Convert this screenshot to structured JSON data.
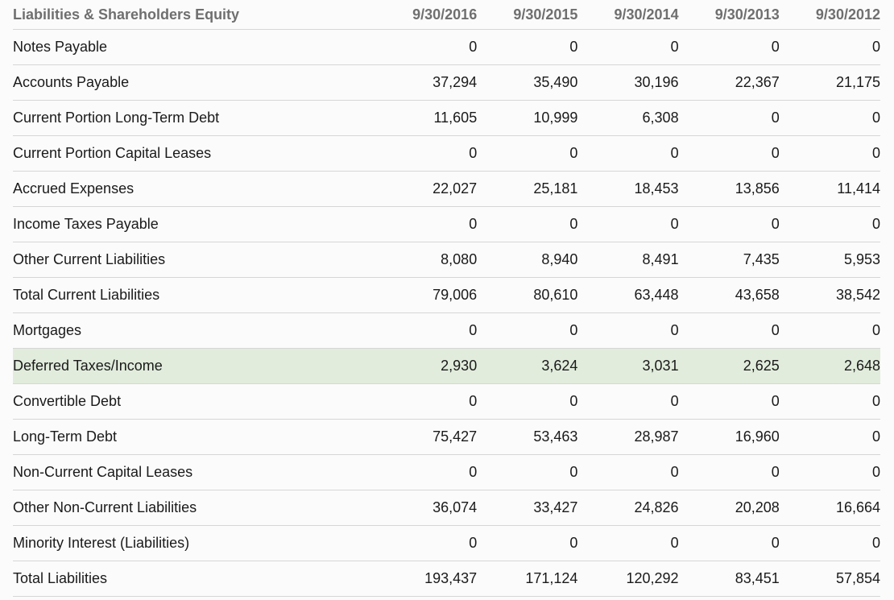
{
  "table": {
    "header_label": "Liabilities & Shareholders Equity",
    "columns": [
      "9/30/2016",
      "9/30/2015",
      "9/30/2014",
      "9/30/2013",
      "9/30/2012"
    ],
    "highlight_color": "#e1ecdc",
    "rows": [
      {
        "label": "Notes Payable",
        "values": [
          "0",
          "0",
          "0",
          "0",
          "0"
        ]
      },
      {
        "label": "Accounts Payable",
        "values": [
          "37,294",
          "35,490",
          "30,196",
          "22,367",
          "21,175"
        ]
      },
      {
        "label": "Current Portion Long-Term Debt",
        "values": [
          "11,605",
          "10,999",
          "6,308",
          "0",
          "0"
        ]
      },
      {
        "label": "Current Portion Capital Leases",
        "values": [
          "0",
          "0",
          "0",
          "0",
          "0"
        ]
      },
      {
        "label": "Accrued Expenses",
        "values": [
          "22,027",
          "25,181",
          "18,453",
          "13,856",
          "11,414"
        ]
      },
      {
        "label": "Income Taxes Payable",
        "values": [
          "0",
          "0",
          "0",
          "0",
          "0"
        ]
      },
      {
        "label": "Other Current Liabilities",
        "values": [
          "8,080",
          "8,940",
          "8,491",
          "7,435",
          "5,953"
        ]
      },
      {
        "label": "Total Current Liabilities",
        "values": [
          "79,006",
          "80,610",
          "63,448",
          "43,658",
          "38,542"
        ]
      },
      {
        "label": "Mortgages",
        "values": [
          "0",
          "0",
          "0",
          "0",
          "0"
        ]
      },
      {
        "label": "Deferred Taxes/Income",
        "values": [
          "2,930",
          "3,624",
          "3,031",
          "2,625",
          "2,648"
        ],
        "highlighted": true
      },
      {
        "label": "Convertible Debt",
        "values": [
          "0",
          "0",
          "0",
          "0",
          "0"
        ]
      },
      {
        "label": "Long-Term Debt",
        "values": [
          "75,427",
          "53,463",
          "28,987",
          "16,960",
          "0"
        ]
      },
      {
        "label": "Non-Current Capital Leases",
        "values": [
          "0",
          "0",
          "0",
          "0",
          "0"
        ]
      },
      {
        "label": "Other Non-Current Liabilities",
        "values": [
          "36,074",
          "33,427",
          "24,826",
          "20,208",
          "16,664"
        ]
      },
      {
        "label": "Minority Interest (Liabilities)",
        "values": [
          "0",
          "0",
          "0",
          "0",
          "0"
        ]
      },
      {
        "label": "Total Liabilities",
        "values": [
          "193,437",
          "171,124",
          "120,292",
          "83,451",
          "57,854"
        ]
      }
    ]
  }
}
